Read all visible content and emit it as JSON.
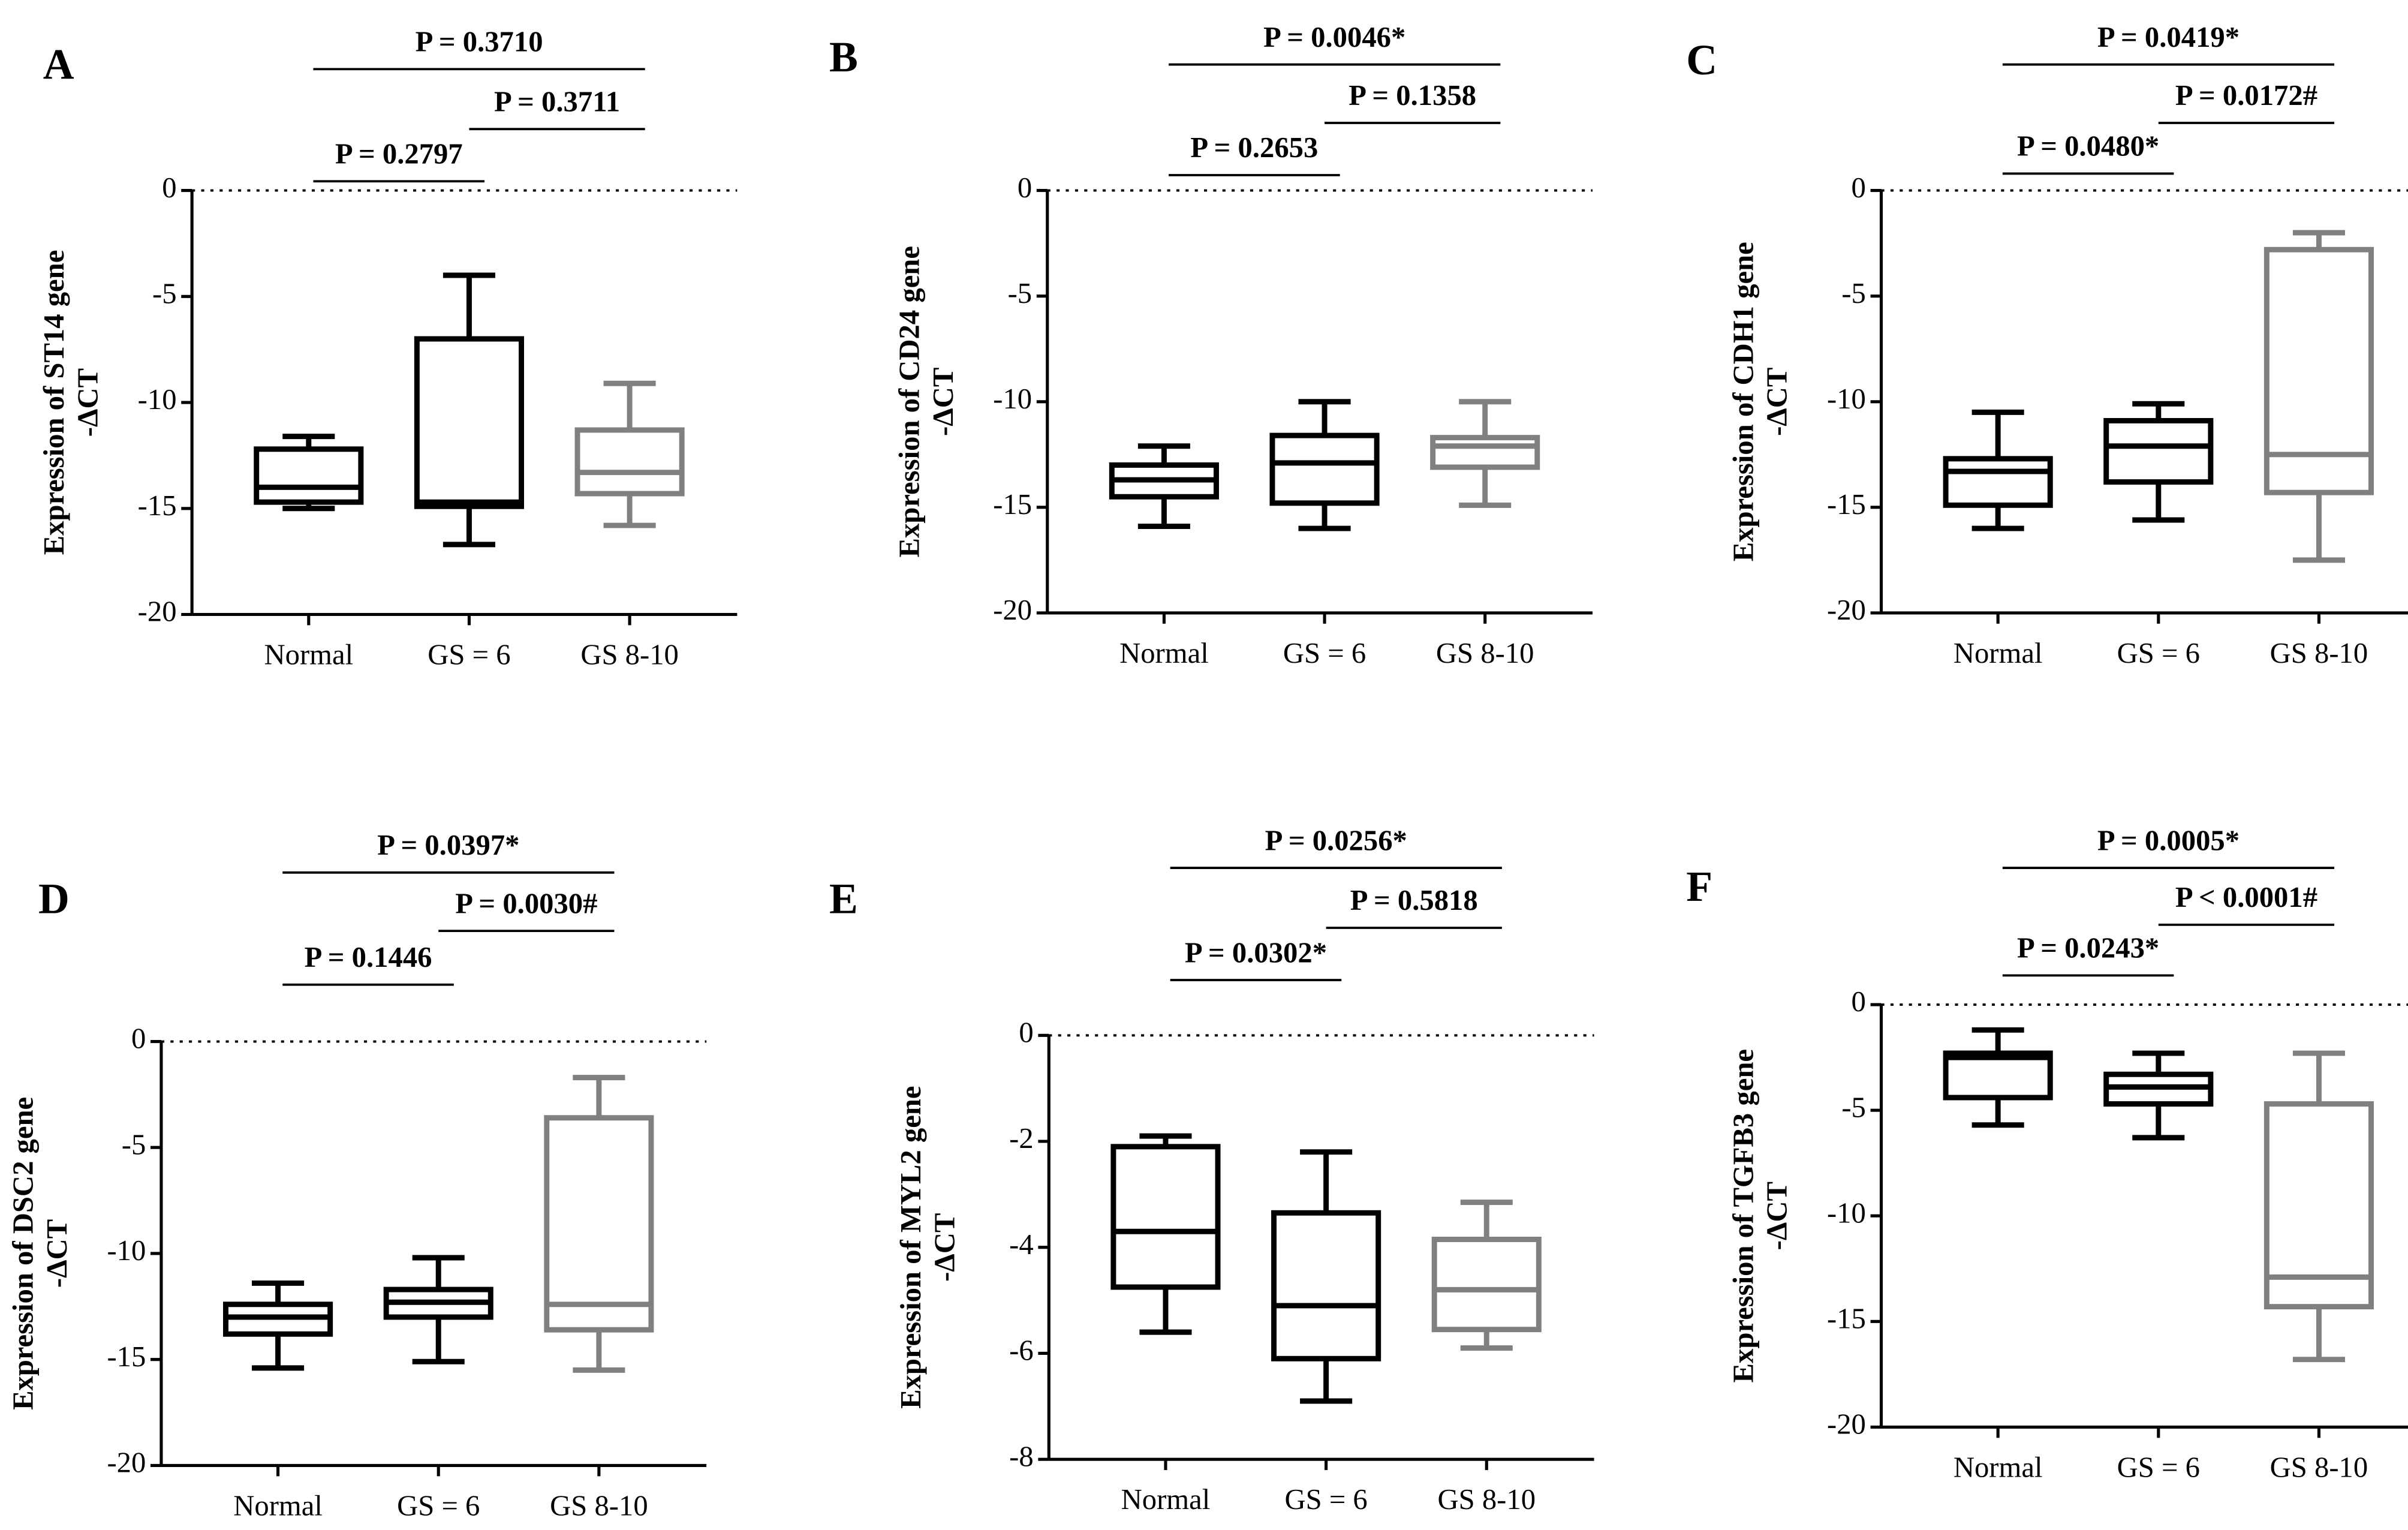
{
  "chart_data": [
    {
      "type": "box",
      "panel": "A",
      "ylabel": [
        "Expression of ST14 gene",
        "-ΔCT"
      ],
      "categories": [
        "Normal",
        "GS = 6",
        "GS 8-10"
      ],
      "colors": [
        "#000000",
        "#000000",
        "#808080"
      ],
      "boxes": [
        {
          "min": -15.0,
          "q1": -14.7,
          "median": -14.0,
          "q3": -12.2,
          "max": -11.6
        },
        {
          "min": -16.7,
          "q1": -14.9,
          "median": -14.7,
          "q3": -7.0,
          "max": -4.0
        },
        {
          "min": -15.8,
          "q1": -14.3,
          "median": -13.3,
          "q3": -11.3,
          "max": -9.1
        }
      ],
      "annotations": [
        "P = 0.3710",
        "P = 0.3711",
        "P = 0.2797"
      ],
      "hline": 0,
      "ylim": [
        -20,
        0
      ],
      "yticks": [
        0,
        -5,
        -10,
        -15,
        -20
      ]
    },
    {
      "type": "box",
      "panel": "B",
      "ylabel": [
        "Expression of CD24 gene",
        "-ΔCT"
      ],
      "categories": [
        "Normal",
        "GS = 6",
        "GS 8-10"
      ],
      "colors": [
        "#000000",
        "#000000",
        "#808080"
      ],
      "boxes": [
        {
          "min": -15.9,
          "q1": -14.5,
          "median": -13.7,
          "q3": -13.0,
          "max": -12.1
        },
        {
          "min": -16.0,
          "q1": -14.8,
          "median": -12.9,
          "q3": -11.6,
          "max": -10.0
        },
        {
          "min": -14.9,
          "q1": -13.1,
          "median": -12.1,
          "q3": -11.7,
          "max": -10.0
        }
      ],
      "annotations": [
        "P = 0.0046*",
        "P = 0.1358",
        "P = 0.2653"
      ],
      "hline": 0,
      "ylim": [
        -20,
        0
      ],
      "yticks": [
        0,
        -5,
        -10,
        -15,
        -20
      ]
    },
    {
      "type": "box",
      "panel": "C",
      "ylabel": [
        "Expression of CDH1 gene",
        "-ΔCT"
      ],
      "categories": [
        "Normal",
        "GS = 6",
        "GS 8-10"
      ],
      "colors": [
        "#000000",
        "#000000",
        "#808080"
      ],
      "boxes": [
        {
          "min": -16.0,
          "q1": -14.9,
          "median": -13.3,
          "q3": -12.7,
          "max": -10.5
        },
        {
          "min": -15.6,
          "q1": -13.8,
          "median": -12.1,
          "q3": -10.9,
          "max": -10.1
        },
        {
          "min": -17.5,
          "q1": -14.3,
          "median": -12.5,
          "q3": -2.8,
          "max": -2.0
        }
      ],
      "annotations": [
        "P = 0.0419*",
        "P = 0.0172#",
        "P = 0.0480*"
      ],
      "hline": 0,
      "ylim": [
        -20,
        0
      ],
      "yticks": [
        0,
        -5,
        -10,
        -15,
        -20
      ]
    },
    {
      "type": "box",
      "panel": "D",
      "ylabel": [
        "Expression of DSC2 gene",
        "-ΔCT"
      ],
      "categories": [
        "Normal",
        "GS = 6",
        "GS 8-10"
      ],
      "colors": [
        "#000000",
        "#000000",
        "#808080"
      ],
      "boxes": [
        {
          "min": -15.4,
          "q1": -13.8,
          "median": -13.0,
          "q3": -12.4,
          "max": -11.4
        },
        {
          "min": -15.1,
          "q1": -13.0,
          "median": -12.3,
          "q3": -11.7,
          "max": -10.2
        },
        {
          "min": -15.5,
          "q1": -13.6,
          "median": -12.4,
          "q3": -3.6,
          "max": -1.7
        }
      ],
      "annotations": [
        "P = 0.0397*",
        "P = 0.0030#",
        "P = 0.1446"
      ],
      "hline": 0,
      "ylim": [
        -20,
        0
      ],
      "yticks": [
        0,
        -5,
        -10,
        -15,
        -20
      ]
    },
    {
      "type": "box",
      "panel": "E",
      "ylabel": [
        "Expression of MYL2 gene",
        "-ΔCT"
      ],
      "categories": [
        "Normal",
        "GS = 6",
        "GS 8-10"
      ],
      "colors": [
        "#000000",
        "#000000",
        "#808080"
      ],
      "boxes": [
        {
          "min": -5.6,
          "q1": -4.75,
          "median": -3.7,
          "q3": -2.1,
          "max": -1.9
        },
        {
          "min": -6.9,
          "q1": -6.1,
          "median": -5.1,
          "q3": -3.35,
          "max": -2.2
        },
        {
          "min": -5.9,
          "q1": -5.55,
          "median": -4.8,
          "q3": -3.85,
          "max": -3.15
        }
      ],
      "annotations": [
        "P = 0.0256*",
        "P = 0.5818",
        "P = 0.0302*"
      ],
      "hline": 0,
      "ylim": [
        -8,
        0
      ],
      "yticks": [
        0,
        -2,
        -4,
        -6,
        -8
      ]
    },
    {
      "type": "box",
      "panel": "F",
      "ylabel": [
        "Expression of TGFB3 gene",
        "-ΔCT"
      ],
      "categories": [
        "Normal",
        "GS = 6",
        "GS 8-10"
      ],
      "colors": [
        "#000000",
        "#000000",
        "#808080"
      ],
      "boxes": [
        {
          "min": -5.7,
          "q1": -4.4,
          "median": -2.5,
          "q3": -2.3,
          "max": -1.2
        },
        {
          "min": -6.3,
          "q1": -4.7,
          "median": -3.9,
          "q3": -3.3,
          "max": -2.3
        },
        {
          "min": -16.8,
          "q1": -14.3,
          "median": -12.9,
          "q3": -4.7,
          "max": -2.3
        }
      ],
      "annotations": [
        "P = 0.0005*",
        "P < 0.0001#",
        "P = 0.0243*"
      ],
      "hline": 0,
      "ylim": [
        -20,
        0
      ],
      "yticks": [
        0,
        -5,
        -10,
        -15,
        -20
      ]
    }
  ]
}
